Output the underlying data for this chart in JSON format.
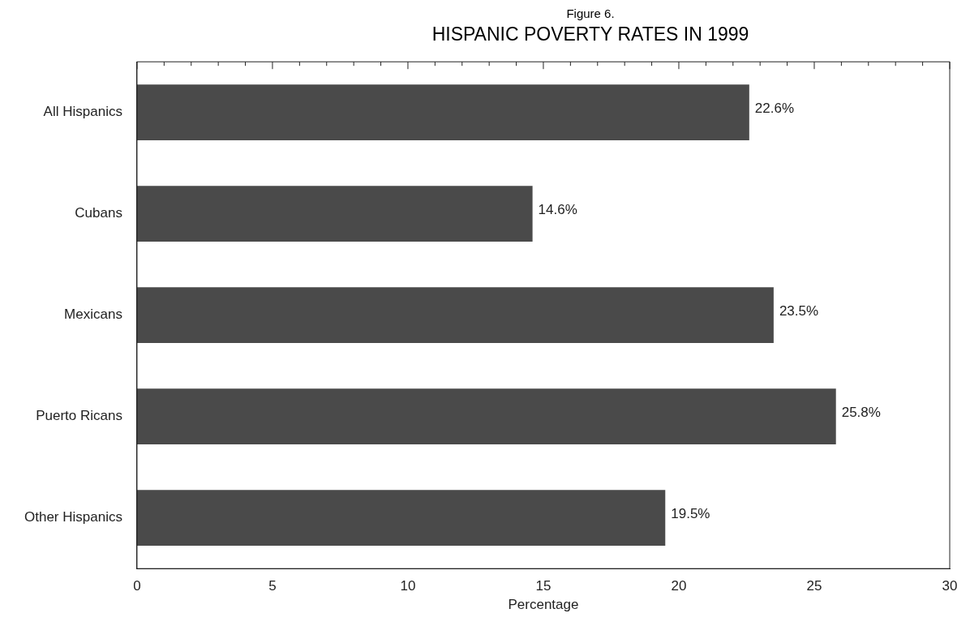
{
  "chart_data": {
    "type": "bar",
    "orientation": "horizontal",
    "subtitle": "Figure 6.",
    "title": "HISPANIC POVERTY RATES IN 1999",
    "xlabel": "Percentage",
    "categories": [
      "All Hispanics",
      "Cubans",
      "Mexicans",
      "Puerto Ricans",
      "Other Hispanics"
    ],
    "values": [
      22.6,
      14.6,
      23.5,
      25.8,
      19.5
    ],
    "value_labels": [
      "22.6%",
      "14.6%",
      "23.5%",
      "25.8%",
      "19.5%"
    ],
    "color": "#4a4a4a",
    "xlim": [
      0,
      30
    ],
    "xticks": [
      0,
      5,
      10,
      15,
      20,
      25,
      30
    ],
    "grid": false,
    "legend": false
  }
}
